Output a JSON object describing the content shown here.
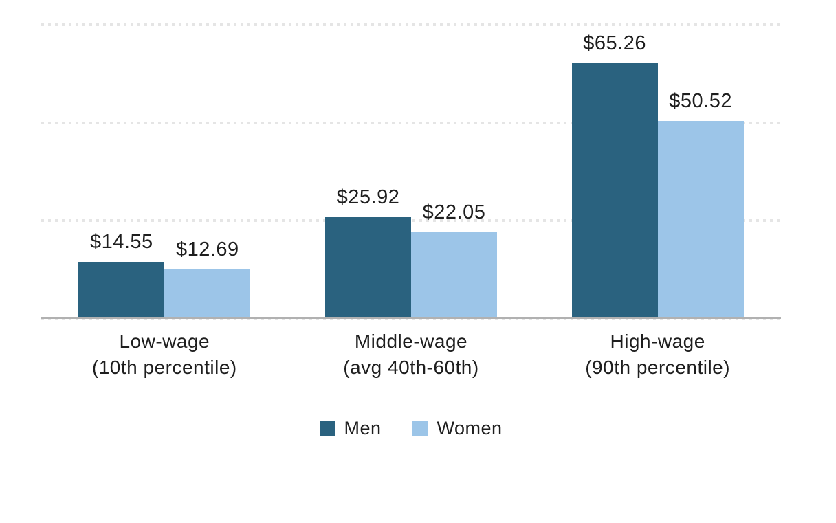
{
  "chart_data": {
    "type": "bar",
    "title": "",
    "xlabel": "",
    "ylabel": "",
    "categories": [
      {
        "line1": "Low-wage",
        "line2": "(10th percentile)"
      },
      {
        "line1": "Middle-wage",
        "line2": "(avg 40th-60th)"
      },
      {
        "line1": "High-wage",
        "line2": "(90th percentile)"
      }
    ],
    "series": [
      {
        "name": "Men",
        "color": "#2a627f",
        "values": [
          14.55,
          25.92,
          65.26
        ],
        "value_labels": [
          "$14.55",
          "$25.92",
          "$65.26"
        ]
      },
      {
        "name": "Women",
        "color": "#9cc5e8",
        "values": [
          12.69,
          22.05,
          50.52
        ],
        "value_labels": [
          "$12.69",
          "$22.05",
          "$50.52"
        ]
      }
    ],
    "ylim": [
      0,
      75
    ],
    "gridline_step": 25,
    "grid": "horizontal-dotted",
    "y_axis_labels_shown": false,
    "legend_position": "bottom-center"
  },
  "styles": {
    "background": "#ffffff",
    "text_color": "#1e1e1e",
    "gridline_color": "#e5e5e5",
    "baseline_color": "#b1b1b1"
  }
}
